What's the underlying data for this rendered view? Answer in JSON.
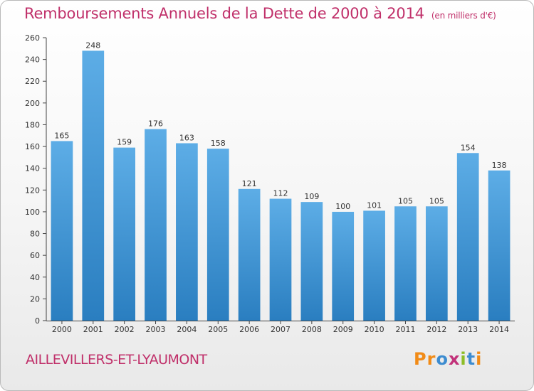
{
  "title": "Remboursements Annuels de la Dette de 2000 à 2014",
  "unit": "(en milliers d'€)",
  "commune": "AILLEVILLERS-ET-LYAUMONT",
  "logo": {
    "text": "Proxiti",
    "letters": [
      "P",
      "r",
      "o",
      "x",
      "i",
      "t",
      "i"
    ],
    "colors": [
      "#f18b17",
      "#f18b17",
      "#3d8cd0",
      "#c2327a",
      "#8dbd27",
      "#3d8cd0",
      "#f18b17"
    ]
  },
  "colors": {
    "title": "#c0306a",
    "bar_top": "#5dade6",
    "bar_bottom": "#2a7ec0"
  },
  "chart_data": {
    "type": "bar",
    "categories": [
      "2000",
      "2001",
      "2002",
      "2003",
      "2004",
      "2005",
      "2006",
      "2007",
      "2008",
      "2009",
      "2010",
      "2011",
      "2012",
      "2013",
      "2014"
    ],
    "values": [
      165,
      248,
      159,
      176,
      163,
      158,
      121,
      112,
      109,
      100,
      101,
      105,
      105,
      154,
      138
    ],
    "ylim": [
      0,
      260
    ],
    "yticks": [
      0,
      20,
      40,
      60,
      80,
      100,
      120,
      140,
      160,
      180,
      200,
      220,
      240,
      260
    ],
    "grid": false,
    "legend": "none"
  }
}
